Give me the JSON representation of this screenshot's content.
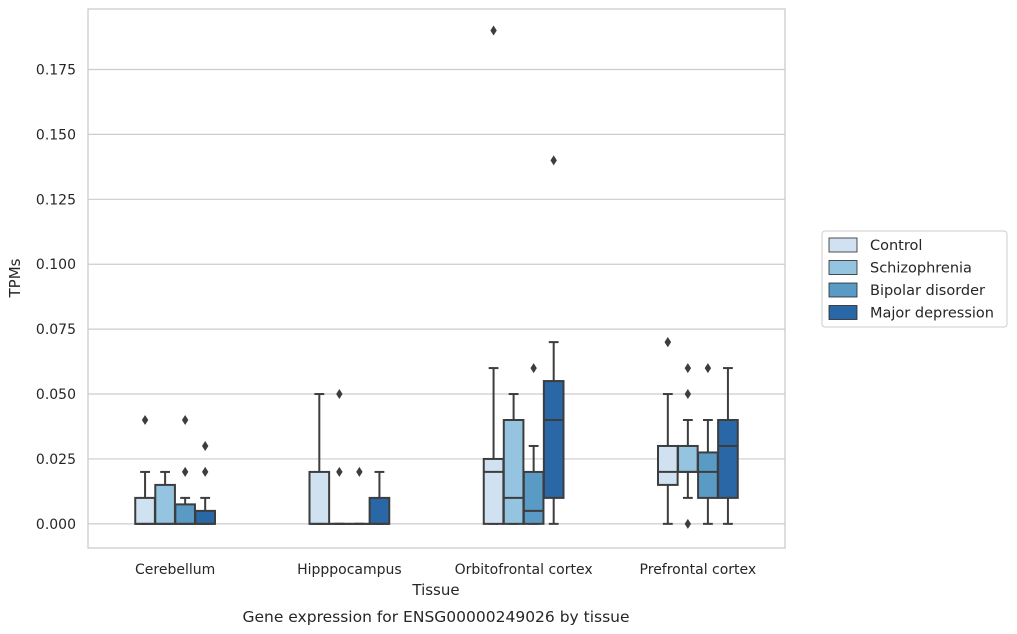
{
  "chart_data": {
    "type": "box",
    "title": "",
    "caption": "Gene expression for ENSG00000249026 by tissue",
    "xlabel": "Tissue",
    "ylabel": "TPMs",
    "ylim": [
      -0.0093,
      0.1983
    ],
    "yticks": [
      "0.000",
      "0.025",
      "0.050",
      "0.075",
      "0.100",
      "0.125",
      "0.150",
      "0.175"
    ],
    "grid": "horizontal",
    "legend_placement": "right",
    "categories": [
      "Cerebellum",
      "Hipppocampus",
      "Orbitofrontal cortex",
      "Prefrontal cortex"
    ],
    "series": [
      {
        "name": "Control",
        "color": "#d0e2f1",
        "boxes": [
          {
            "q1": 0.0,
            "median": 0.0,
            "q3": 0.01,
            "whislo": 0.0,
            "whishi": 0.02,
            "fliers": [
              0.04
            ]
          },
          {
            "q1": 0.0,
            "median": 0.0,
            "q3": 0.02,
            "whislo": 0.0,
            "whishi": 0.05,
            "fliers": []
          },
          {
            "q1": 0.0,
            "median": 0.02,
            "q3": 0.025,
            "whislo": 0.0,
            "whishi": 0.06,
            "fliers": [
              0.19
            ]
          },
          {
            "q1": 0.015,
            "median": 0.02,
            "q3": 0.03,
            "whislo": 0.0,
            "whishi": 0.05,
            "fliers": [
              0.07,
              0.07
            ]
          }
        ]
      },
      {
        "name": "Schizophrenia",
        "color": "#94c4df",
        "boxes": [
          {
            "q1": 0.0,
            "median": 0.0,
            "q3": 0.015,
            "whislo": 0.0,
            "whishi": 0.02,
            "fliers": []
          },
          {
            "q1": 0.0,
            "median": 0.0,
            "q3": 0.0,
            "whislo": 0.0,
            "whishi": 0.0,
            "fliers": [
              0.05,
              0.02
            ]
          },
          {
            "q1": 0.0,
            "median": 0.01,
            "q3": 0.04,
            "whislo": 0.0,
            "whishi": 0.05,
            "fliers": []
          },
          {
            "q1": 0.02,
            "median": 0.02,
            "q3": 0.03,
            "whislo": 0.01,
            "whishi": 0.04,
            "fliers": [
              0.06,
              0.05,
              0.0
            ]
          }
        ]
      },
      {
        "name": "Bipolar disorder",
        "color": "#5a9bc6",
        "boxes": [
          {
            "q1": 0.0,
            "median": 0.0,
            "q3": 0.0075,
            "whislo": 0.0,
            "whishi": 0.01,
            "fliers": [
              0.04,
              0.02
            ]
          },
          {
            "q1": 0.0,
            "median": 0.0,
            "q3": 0.0,
            "whislo": 0.0,
            "whishi": 0.0,
            "fliers": [
              0.02
            ]
          },
          {
            "q1": 0.0,
            "median": 0.005,
            "q3": 0.02,
            "whislo": 0.0,
            "whishi": 0.03,
            "fliers": [
              0.06
            ]
          },
          {
            "q1": 0.01,
            "median": 0.02,
            "q3": 0.0275,
            "whislo": 0.0,
            "whishi": 0.04,
            "fliers": [
              0.06
            ]
          }
        ]
      },
      {
        "name": "Major depression",
        "color": "#2a67a6",
        "boxes": [
          {
            "q1": 0.0,
            "median": 0.0,
            "q3": 0.005,
            "whislo": 0.0,
            "whishi": 0.01,
            "fliers": [
              0.03,
              0.02
            ]
          },
          {
            "q1": 0.0,
            "median": 0.0,
            "q3": 0.01,
            "whislo": 0.0,
            "whishi": 0.02,
            "fliers": []
          },
          {
            "q1": 0.01,
            "median": 0.04,
            "q3": 0.055,
            "whislo": 0.0,
            "whishi": 0.07,
            "fliers": [
              0.14
            ]
          },
          {
            "q1": 0.01,
            "median": 0.03,
            "q3": 0.04,
            "whislo": 0.0,
            "whishi": 0.06,
            "fliers": []
          }
        ]
      }
    ]
  }
}
